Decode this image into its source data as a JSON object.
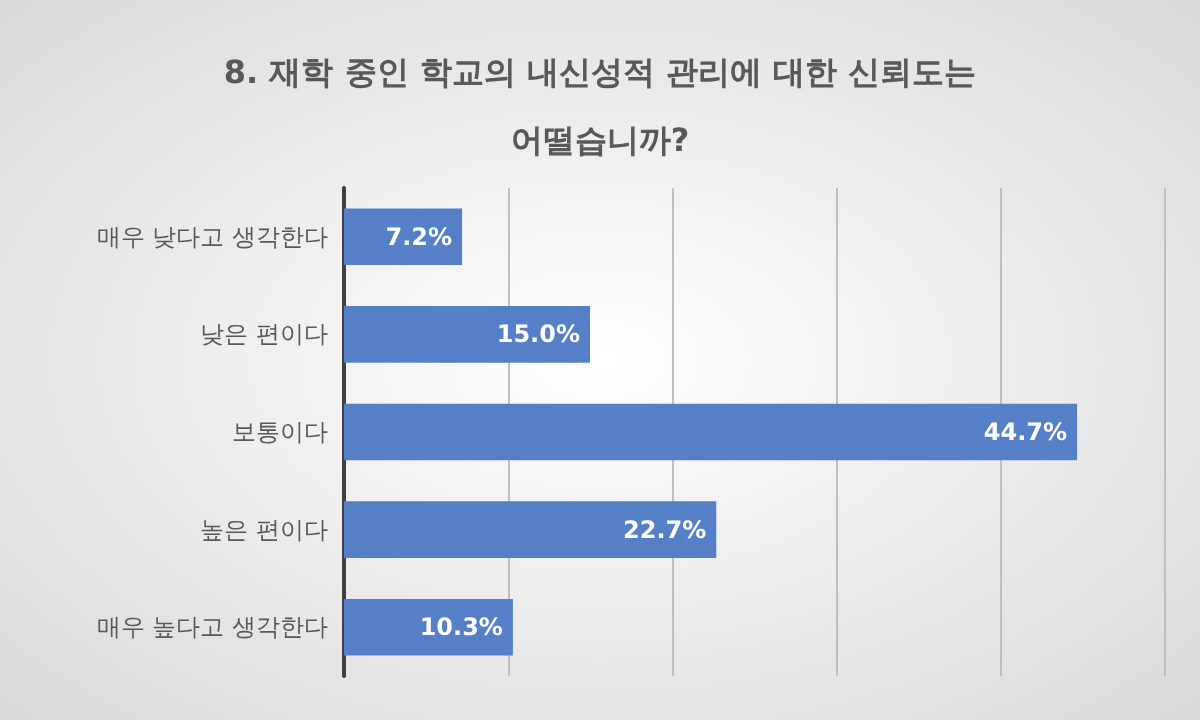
{
  "chart_data": {
    "type": "bar",
    "orientation": "horizontal",
    "title": "8. 재학 중인 학교의 내신성적 관리에 대한 신뢰도는\n어떨습니까?",
    "categories": [
      "매우 낮다고 생각한다",
      "낮은 편이다",
      "보통이다",
      "높은 편이다",
      "매우 높다고 생각한다"
    ],
    "values": [
      7.2,
      15.0,
      44.7,
      22.7,
      10.3
    ],
    "value_labels": [
      "7.2%",
      "15.0%",
      "44.7%",
      "22.7%",
      "10.3%"
    ],
    "color": "#5580c8",
    "xlim": [
      0,
      50
    ],
    "xticks": [
      {
        "value": 0,
        "label": null
      },
      {
        "value": 10,
        "label": null
      },
      {
        "value": 20,
        "label": null
      },
      {
        "value": 30,
        "label": null
      },
      {
        "value": 40,
        "label": null
      },
      {
        "value": 50,
        "label": null
      }
    ],
    "grid": "x",
    "tick_labels": "y"
  }
}
